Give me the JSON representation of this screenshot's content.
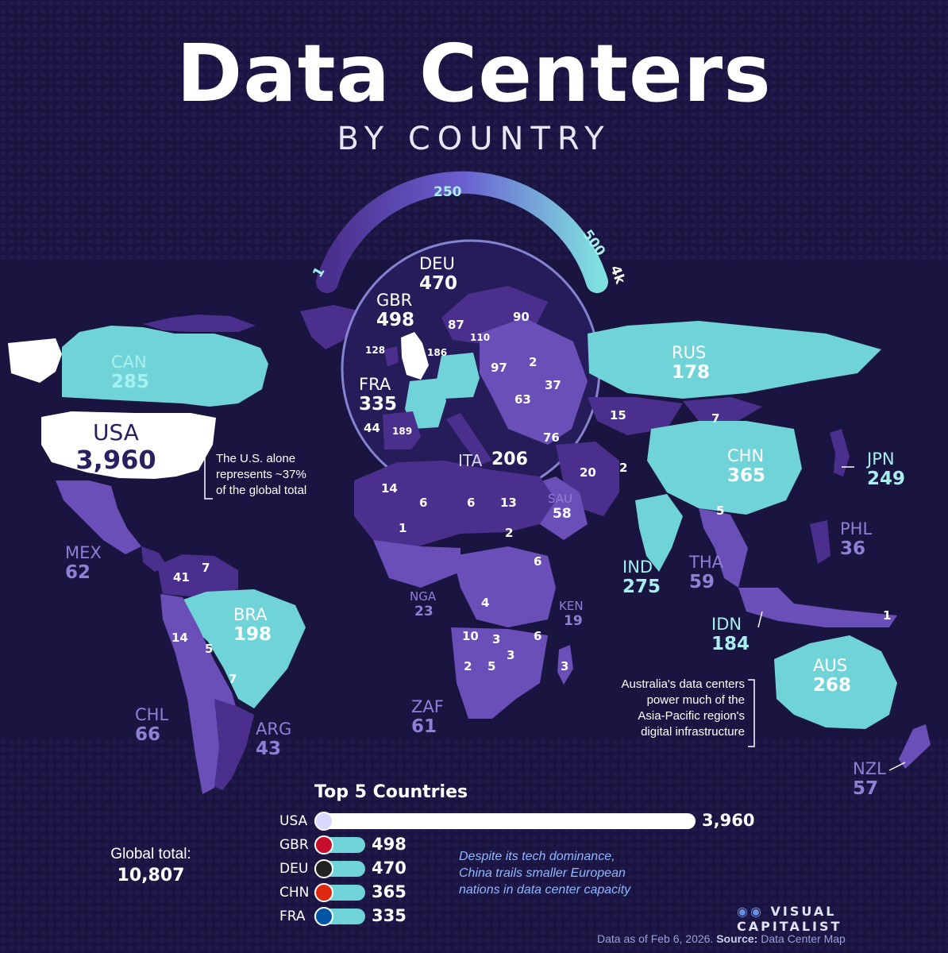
{
  "header": {
    "title": "Data Centers",
    "subtitle": "BY COUNTRY"
  },
  "scale": {
    "labels": [
      "1",
      "250",
      "500",
      "4k"
    ]
  },
  "chart_data": {
    "type": "choropleth-map",
    "title": "Data Centers by Country",
    "value_label": "Number of data centers",
    "featured": [
      {
        "code": "USA",
        "value": 3960,
        "display": "3,960"
      },
      {
        "code": "CAN",
        "value": 285,
        "display": "285"
      },
      {
        "code": "MEX",
        "value": 62,
        "display": "62"
      },
      {
        "code": "BRA",
        "value": 198,
        "display": "198"
      },
      {
        "code": "CHL",
        "value": 66,
        "display": "66"
      },
      {
        "code": "ARG",
        "value": 43,
        "display": "43"
      },
      {
        "code": "GBR",
        "value": 498,
        "display": "498"
      },
      {
        "code": "DEU",
        "value": 470,
        "display": "470"
      },
      {
        "code": "FRA",
        "value": 335,
        "display": "335"
      },
      {
        "code": "ITA",
        "value": 206,
        "display": "206"
      },
      {
        "code": "RUS",
        "value": 178,
        "display": "178"
      },
      {
        "code": "CHN",
        "value": 365,
        "display": "365"
      },
      {
        "code": "JPN",
        "value": 249,
        "display": "249"
      },
      {
        "code": "IND",
        "value": 275,
        "display": "275"
      },
      {
        "code": "SAU",
        "value": 58,
        "display": "58"
      },
      {
        "code": "THA",
        "value": 59,
        "display": "59"
      },
      {
        "code": "PHL",
        "value": 36,
        "display": "36"
      },
      {
        "code": "IDN",
        "value": 184,
        "display": "184"
      },
      {
        "code": "AUS",
        "value": 268,
        "display": "268"
      },
      {
        "code": "NZL",
        "value": 57,
        "display": "57"
      },
      {
        "code": "NGA",
        "value": 23,
        "display": "23"
      },
      {
        "code": "KEN",
        "value": 19,
        "display": "19"
      },
      {
        "code": "ZAF",
        "value": 61,
        "display": "61"
      }
    ],
    "unlabeled_values": [
      "87",
      "90",
      "110",
      "128",
      "186",
      "97",
      "2",
      "37",
      "63",
      "44",
      "189",
      "76",
      "15",
      "7",
      "20",
      "2",
      "5",
      "14",
      "6",
      "6",
      "13",
      "1",
      "2",
      "6",
      "4",
      "10",
      "3",
      "6",
      "3",
      "2",
      "5",
      "3",
      "41",
      "7",
      "14",
      "5",
      "7",
      "1"
    ],
    "top5": {
      "title": "Top 5 Countries",
      "items": [
        {
          "code": "USA",
          "value": 3960,
          "display": "3,960"
        },
        {
          "code": "GBR",
          "value": 498,
          "display": "498"
        },
        {
          "code": "DEU",
          "value": 470,
          "display": "470"
        },
        {
          "code": "CHN",
          "value": 365,
          "display": "365"
        },
        {
          "code": "FRA",
          "value": 335,
          "display": "335"
        }
      ]
    }
  },
  "notes": {
    "usa": [
      "The U.S. alone",
      "represents ~37%",
      "of the global total"
    ],
    "australia": [
      "Australia's data centers",
      "power much of the",
      "Asia-Pacific region's",
      "digital infrastructure"
    ],
    "china": [
      "Despite its tech dominance,",
      "China trails smaller European",
      "nations in data center capacity"
    ]
  },
  "global": {
    "label": "Global total:",
    "value": "10,807"
  },
  "brand": "VISUAL CAPITALIST",
  "footer": {
    "date": "Data as of Feb 6, 2026.",
    "source_label": "Source:",
    "source": "Data Center Map"
  },
  "colors": {
    "bg": "#1a1440",
    "light": "#6fd3d8",
    "mid": "#6a4fb8",
    "dark": "#4a2f8c",
    "white": "#ffffff",
    "label_cyan": "#a7f0f0",
    "label_purple": "#8f7fd6"
  }
}
